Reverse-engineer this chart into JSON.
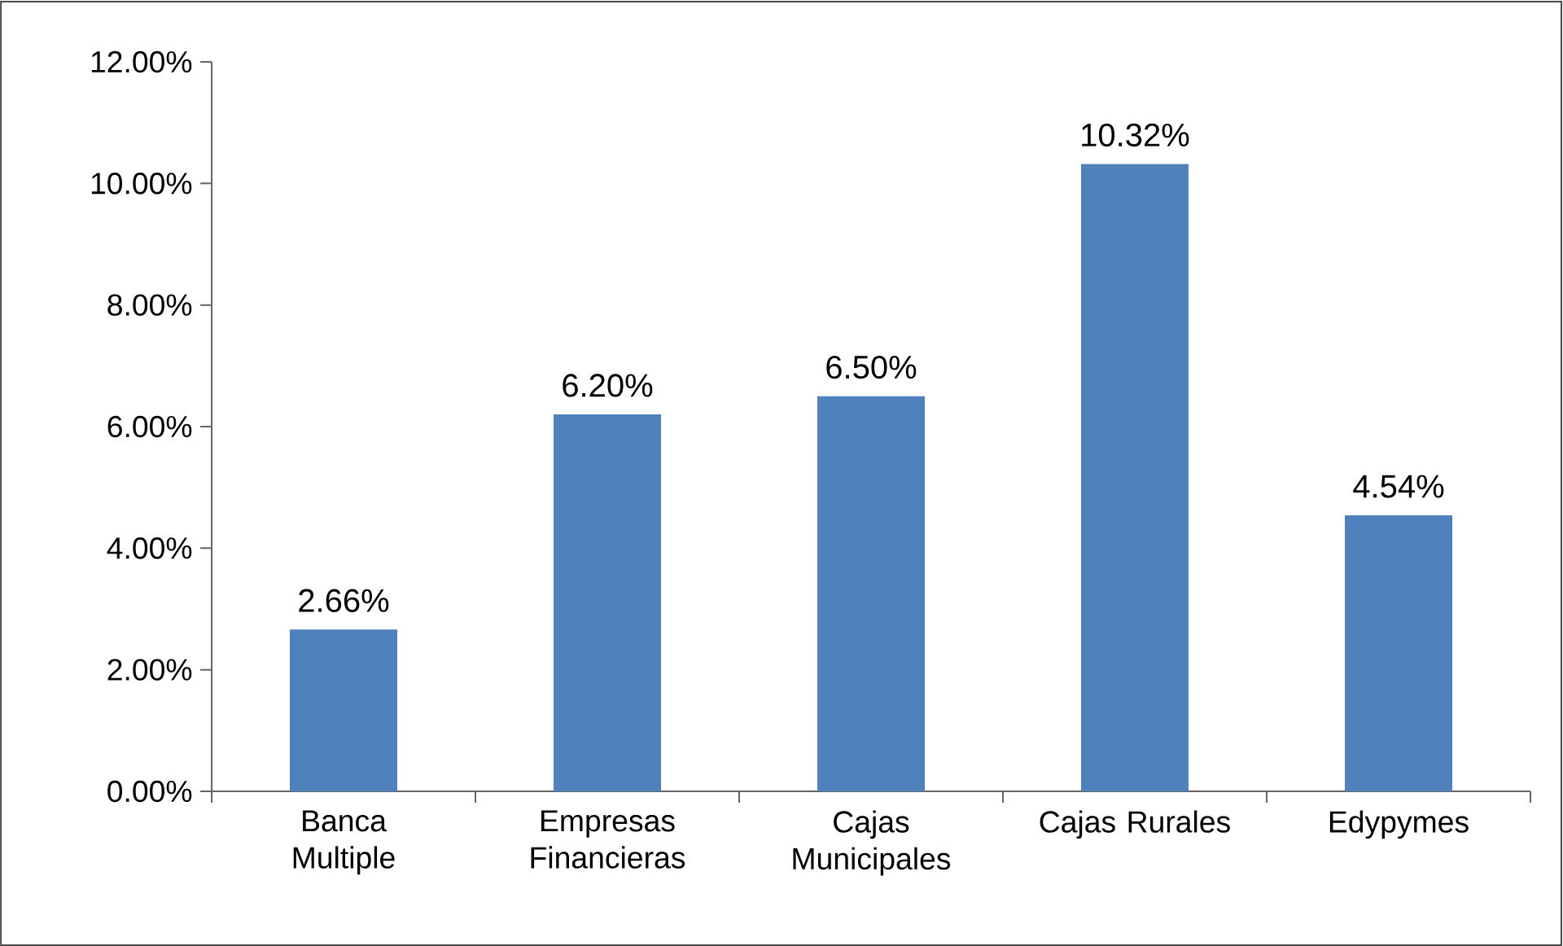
{
  "chart_data": {
    "type": "bar",
    "categories": [
      "Banca Multiple",
      "Empresas Financieras",
      "Cajas Municipales",
      "Cajas Rurales",
      "Edypymes"
    ],
    "values": [
      2.66,
      6.2,
      6.5,
      10.32,
      4.54
    ],
    "value_labels": [
      "2.66%",
      "6.20%",
      "6.50%",
      "10.32%",
      "4.54%"
    ],
    "color": "#4f81bd",
    "ylim": [
      0,
      12
    ],
    "yticks": [
      {
        "value": 0,
        "label": "0.00%"
      },
      {
        "value": 2,
        "label": "2.00%"
      },
      {
        "value": 4,
        "label": "4.00%"
      },
      {
        "value": 6,
        "label": "6.00%"
      },
      {
        "value": 8,
        "label": "8.00%"
      },
      {
        "value": 10,
        "label": "10.00%"
      },
      {
        "value": 12,
        "label": "12.00%"
      }
    ],
    "grid": false
  }
}
